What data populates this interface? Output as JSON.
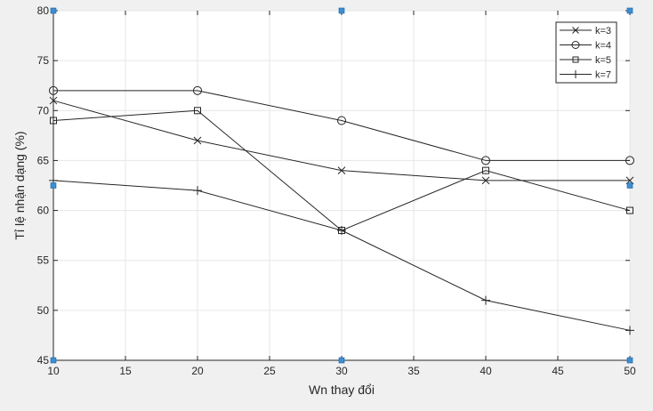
{
  "chart_data": {
    "type": "line",
    "title": "",
    "xlabel": "Wn thay đổi",
    "ylabel": "Tỉ lệ nhận dạng (%)",
    "x": [
      10,
      20,
      30,
      40,
      50
    ],
    "xlim": [
      10,
      50
    ],
    "ylim": [
      45,
      80
    ],
    "xticks": [
      10,
      15,
      20,
      25,
      30,
      35,
      40,
      45,
      50
    ],
    "yticks": [
      45,
      50,
      55,
      60,
      65,
      70,
      75,
      80
    ],
    "grid": true,
    "legend_position": "top-right",
    "series": [
      {
        "name": "k=3",
        "marker": "x",
        "values": [
          71,
          67,
          64,
          63,
          63
        ]
      },
      {
        "name": "k=4",
        "marker": "o",
        "values": [
          72,
          72,
          69,
          65,
          65
        ]
      },
      {
        "name": "k=5",
        "marker": "s",
        "values": [
          69,
          70,
          58,
          64,
          60
        ]
      },
      {
        "name": "k=7",
        "marker": "+",
        "values": [
          63,
          62,
          58,
          51,
          48
        ]
      }
    ],
    "colors": {
      "line": "#262626",
      "background": "#f0f0f0",
      "plot_area": "#ffffff",
      "grid": "#e6e6e6",
      "axis": "#262626",
      "edit_handle": "#3a8fd6"
    }
  }
}
